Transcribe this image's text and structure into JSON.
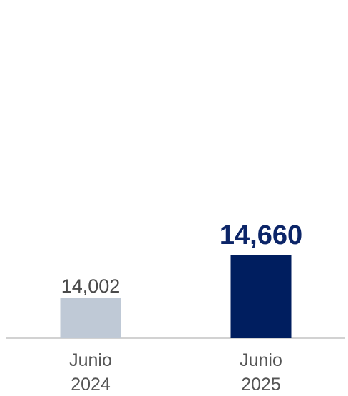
{
  "chart_data": {
    "type": "bar",
    "categories": [
      "Junio 2024",
      "Junio 2025"
    ],
    "category_lines": [
      [
        "Junio",
        "2024"
      ],
      [
        "Junio",
        "2025"
      ]
    ],
    "values": [
      14002,
      14660
    ],
    "value_labels": [
      "14,002",
      "14,660"
    ],
    "colors": [
      "#bfc9d6",
      "#001e5f"
    ],
    "value_label_colors": [
      "#4a4a4a",
      "#0c2568"
    ],
    "highlight_index": 1,
    "title": "",
    "xlabel": "",
    "ylabel": "",
    "y_axis_visible": false,
    "grid": false,
    "legend": "none",
    "baseline_color": "#d2d2d2"
  }
}
